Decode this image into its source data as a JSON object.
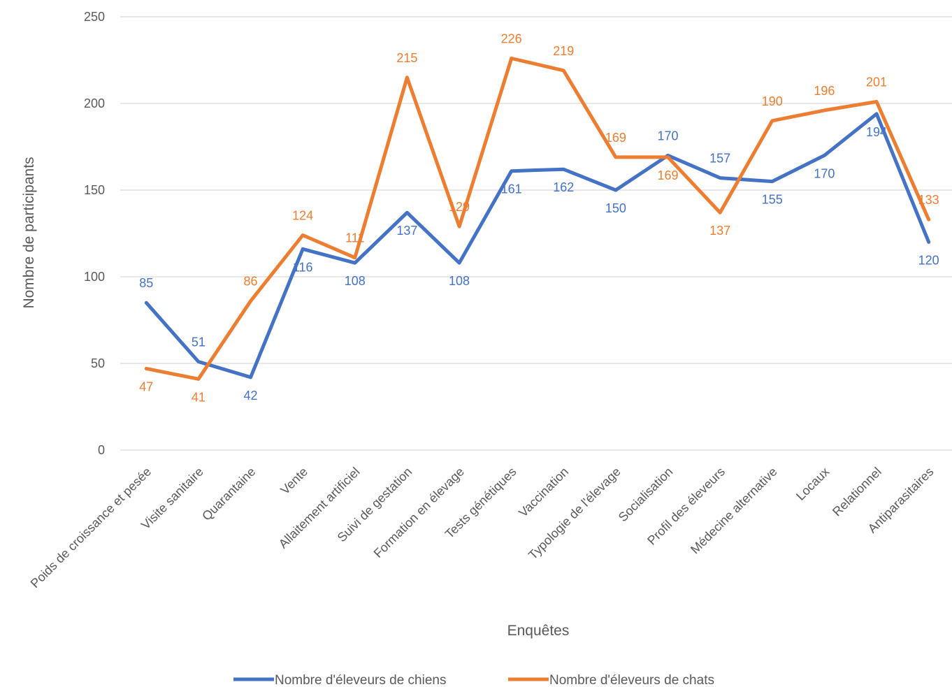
{
  "chart_data": {
    "type": "line",
    "title": "",
    "xlabel": "Enquêtes",
    "ylabel": "Nombre de participants",
    "ylim": [
      0,
      250
    ],
    "yticks": [
      0,
      50,
      100,
      150,
      200,
      250
    ],
    "grid": "horizontal",
    "legend_position": "bottom",
    "categories": [
      "Poids de croissance et pesée",
      "Visite sanitaire",
      "Quarantaine",
      "Vente",
      "Allaitement artificiel",
      "Suivi de gestation",
      "Formation en élevage",
      "Tests génétiques",
      "Vaccination",
      "Typologie de l'élevage",
      "Socialisation",
      "Profil des éleveurs",
      "Médecine alternative",
      "Locaux",
      "Relationnel",
      "Antiparasitaires"
    ],
    "series": [
      {
        "name": "Nombre d'éleveurs de chiens",
        "color": "#4472C4",
        "values": [
          85,
          51,
          42,
          116,
          108,
          137,
          108,
          161,
          162,
          150,
          170,
          157,
          155,
          170,
          194,
          120
        ]
      },
      {
        "name": "Nombre d'éleveurs de chats",
        "color": "#ED7D31",
        "values": [
          47,
          41,
          86,
          124,
          111,
          215,
          129,
          226,
          219,
          169,
          169,
          137,
          190,
          196,
          201,
          133
        ]
      }
    ]
  }
}
